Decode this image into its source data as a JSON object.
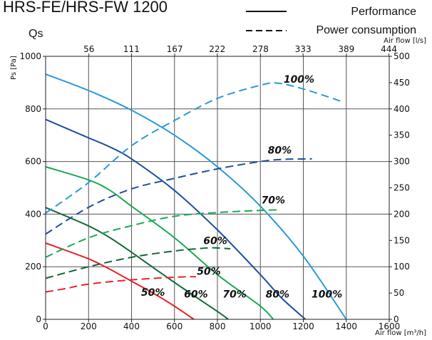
{
  "chart_data": {
    "type": "line",
    "title": "HRS-FE/HRS-FW 1200",
    "subtitle": "Qs",
    "legend": {
      "placement": "top-right",
      "entries": [
        {
          "label": "Performance",
          "style": "solid"
        },
        {
          "label": "Power consumption",
          "style": "dashed"
        }
      ]
    },
    "x_axis": {
      "label": "Air flow [m³/h]",
      "range": [
        0,
        1600
      ],
      "ticks": [
        "0",
        "200",
        "400",
        "600",
        "800",
        "1000",
        "1200",
        "1400",
        "1600"
      ]
    },
    "x2_axis": {
      "label": "Air flow [l/s]",
      "ticks": [
        "56",
        "111",
        "167",
        "222",
        "278",
        "333",
        "389",
        "444"
      ]
    },
    "y_axis": {
      "label": "Ps [Pa]",
      "range": [
        0,
        1000
      ],
      "ticks": [
        "0",
        "200",
        "400",
        "600",
        "800",
        "1000"
      ]
    },
    "y2_axis": {
      "label": "",
      "range": [
        0,
        500
      ],
      "ticks": [
        "0",
        "50",
        "100",
        "150",
        "200",
        "250",
        "300",
        "350",
        "400",
        "450",
        "500"
      ]
    },
    "grid": true,
    "series": [
      {
        "name": "100%",
        "kind": "performance",
        "color": "#2a9ad8",
        "points": [
          [
            0,
            932
          ],
          [
            200,
            870
          ],
          [
            400,
            795
          ],
          [
            600,
            700
          ],
          [
            800,
            580
          ],
          [
            1000,
            430
          ],
          [
            1200,
            240
          ],
          [
            1400,
            0
          ]
        ]
      },
      {
        "name": "80%",
        "kind": "performance",
        "color": "#1f4f9c",
        "points": [
          [
            0,
            760
          ],
          [
            200,
            690
          ],
          [
            300,
            655
          ],
          [
            400,
            610
          ],
          [
            600,
            490
          ],
          [
            800,
            340
          ],
          [
            1000,
            170
          ],
          [
            1100,
            80
          ],
          [
            1210,
            0
          ]
        ]
      },
      {
        "name": "70%",
        "kind": "performance",
        "color": "#1aaa52",
        "points": [
          [
            0,
            580
          ],
          [
            200,
            530
          ],
          [
            300,
            490
          ],
          [
            400,
            430
          ],
          [
            600,
            310
          ],
          [
            800,
            170
          ],
          [
            1000,
            50
          ],
          [
            1060,
            0
          ]
        ]
      },
      {
        "name": "60%",
        "kind": "performance",
        "color": "#13683a",
        "points": [
          [
            0,
            425
          ],
          [
            200,
            355
          ],
          [
            300,
            310
          ],
          [
            400,
            255
          ],
          [
            600,
            140
          ],
          [
            800,
            30
          ],
          [
            850,
            0
          ]
        ]
      },
      {
        "name": "50%",
        "kind": "performance",
        "color": "#e8222c",
        "points": [
          [
            0,
            290
          ],
          [
            200,
            230
          ],
          [
            300,
            190
          ],
          [
            400,
            145
          ],
          [
            500,
            100
          ],
          [
            600,
            50
          ],
          [
            690,
            0
          ]
        ]
      },
      {
        "name": "100%",
        "kind": "power",
        "color": "#2a9ad8",
        "points": [
          [
            0,
            202
          ],
          [
            200,
            260
          ],
          [
            400,
            330
          ],
          [
            600,
            378
          ],
          [
            800,
            420
          ],
          [
            1000,
            445
          ],
          [
            1080,
            449
          ],
          [
            1200,
            438
          ],
          [
            1380,
            414
          ]
        ]
      },
      {
        "name": "80%",
        "kind": "power",
        "color": "#1f4f9c",
        "points": [
          [
            0,
            162
          ],
          [
            200,
            213
          ],
          [
            400,
            248
          ],
          [
            600,
            268
          ],
          [
            800,
            286
          ],
          [
            1000,
            300
          ],
          [
            1100,
            304
          ],
          [
            1240,
            305
          ]
        ]
      },
      {
        "name": "70%",
        "kind": "power",
        "color": "#1aaa52",
        "points": [
          [
            0,
            118
          ],
          [
            200,
            155
          ],
          [
            400,
            178
          ],
          [
            600,
            196
          ],
          [
            800,
            203
          ],
          [
            1000,
            207
          ],
          [
            1080,
            208
          ]
        ]
      },
      {
        "name": "60%",
        "kind": "power",
        "color": "#13683a",
        "points": [
          [
            0,
            78
          ],
          [
            200,
            100
          ],
          [
            400,
            118
          ],
          [
            600,
            130
          ],
          [
            700,
            134
          ],
          [
            780,
            136
          ],
          [
            860,
            134
          ]
        ]
      },
      {
        "name": "50%",
        "kind": "power",
        "color": "#e8222c",
        "points": [
          [
            0,
            52
          ],
          [
            100,
            59
          ],
          [
            200,
            67
          ],
          [
            400,
            75
          ],
          [
            600,
            80
          ],
          [
            700,
            81
          ]
        ]
      }
    ],
    "annotations": [
      {
        "text": "100%",
        "x": 1180,
        "y_right": 450
      },
      {
        "text": "80%",
        "x": 1090,
        "y_right": 315
      },
      {
        "text": "70%",
        "x": 1060,
        "y_right": 220
      },
      {
        "text": "60%",
        "x": 790,
        "y_right": 143
      },
      {
        "text": "50%",
        "x": 760,
        "y_right": 85
      },
      {
        "text": "50%",
        "x": 500,
        "y": 90
      },
      {
        "text": "60%",
        "x": 700,
        "y": 82
      },
      {
        "text": "70%",
        "x": 880,
        "y": 82
      },
      {
        "text": "80%",
        "x": 1080,
        "y": 82
      },
      {
        "text": "100%",
        "x": 1310,
        "y": 82
      }
    ]
  }
}
